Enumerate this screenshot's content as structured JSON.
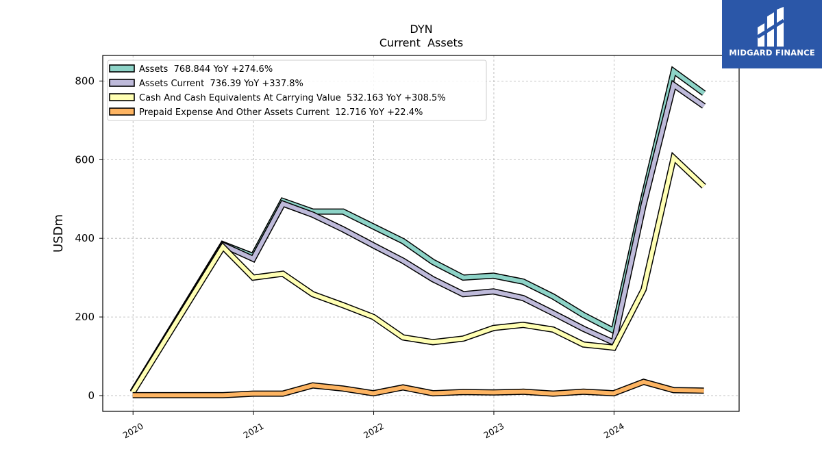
{
  "brand": {
    "name": "MIDGARD FINANCE",
    "bg": "#2b57a8"
  },
  "chart_data": {
    "type": "line",
    "title": "DYN",
    "subtitle": "Current  Assets",
    "ylabel": "USDm",
    "xlabel": "",
    "ylim": [
      -40,
      865
    ],
    "yticks": [
      0,
      200,
      400,
      600,
      800
    ],
    "xlim": [
      "2019-10-01",
      "2025-01-15"
    ],
    "xticks": [
      {
        "label": "2020",
        "date": "2020-01-01"
      },
      {
        "label": "2021",
        "date": "2021-01-01"
      },
      {
        "label": "2022",
        "date": "2022-01-01"
      },
      {
        "label": "2023",
        "date": "2023-01-01"
      },
      {
        "label": "2024",
        "date": "2024-01-01"
      }
    ],
    "grid": true,
    "legend_position": "top-left",
    "series": [
      {
        "name": "Assets  768.844 YoY +274.6%",
        "color": "#8dd3c7",
        "points": [
          [
            "2019-12-31",
            10
          ],
          [
            "2020-09-30",
            385
          ],
          [
            "2020-12-31",
            355
          ],
          [
            "2021-03-31",
            495
          ],
          [
            "2021-06-30",
            468
          ],
          [
            "2021-09-30",
            468
          ],
          [
            "2021-12-31",
            430
          ],
          [
            "2022-03-31",
            393
          ],
          [
            "2022-06-30",
            340
          ],
          [
            "2022-09-30",
            300
          ],
          [
            "2022-12-31",
            305
          ],
          [
            "2023-03-31",
            290
          ],
          [
            "2023-06-30",
            252
          ],
          [
            "2023-09-30",
            205
          ],
          [
            "2023-12-31",
            165
          ],
          [
            "2024-03-31",
            505
          ],
          [
            "2024-06-30",
            825
          ],
          [
            "2024-09-30",
            768.844
          ]
        ]
      },
      {
        "name": "Assets Current  736.39 YoY +337.8%",
        "color": "#bebada",
        "points": [
          [
            "2019-12-31",
            10
          ],
          [
            "2020-09-30",
            383
          ],
          [
            "2020-12-31",
            348
          ],
          [
            "2021-03-31",
            488
          ],
          [
            "2021-06-30",
            460
          ],
          [
            "2021-09-30",
            423
          ],
          [
            "2021-12-31",
            382
          ],
          [
            "2022-03-31",
            343
          ],
          [
            "2022-06-30",
            296
          ],
          [
            "2022-09-30",
            258
          ],
          [
            "2022-12-31",
            265
          ],
          [
            "2023-03-31",
            248
          ],
          [
            "2023-06-30",
            210
          ],
          [
            "2023-09-30",
            170
          ],
          [
            "2023-12-31",
            135
          ],
          [
            "2024-03-31",
            485
          ],
          [
            "2024-06-30",
            790
          ],
          [
            "2024-09-30",
            736.39
          ]
        ]
      },
      {
        "name": "Cash And Cash Equivalents At Carrying Value  532.163 YoY +308.5%",
        "color": "#ffffb3",
        "points": [
          [
            "2019-12-31",
            8
          ],
          [
            "2020-09-30",
            378
          ],
          [
            "2020-12-31",
            300
          ],
          [
            "2021-03-31",
            310
          ],
          [
            "2021-06-30",
            258
          ],
          [
            "2021-09-30",
            230
          ],
          [
            "2021-12-31",
            200
          ],
          [
            "2022-03-31",
            148
          ],
          [
            "2022-06-30",
            136
          ],
          [
            "2022-09-30",
            145
          ],
          [
            "2022-12-31",
            172
          ],
          [
            "2023-03-31",
            180
          ],
          [
            "2023-06-30",
            168
          ],
          [
            "2023-09-30",
            130
          ],
          [
            "2023-12-31",
            122
          ],
          [
            "2024-03-31",
            270
          ],
          [
            "2024-06-30",
            605
          ],
          [
            "2024-09-30",
            532.163
          ]
        ]
      },
      {
        "name": "Prepaid Expense And Other Assets Current  12.716 YoY +22.4%",
        "color": "#fdb462",
        "points": [
          [
            "2019-12-31",
            1
          ],
          [
            "2020-09-30",
            1
          ],
          [
            "2020-12-31",
            5
          ],
          [
            "2021-03-31",
            5
          ],
          [
            "2021-06-30",
            26
          ],
          [
            "2021-09-30",
            18
          ],
          [
            "2021-12-31",
            6
          ],
          [
            "2022-03-31",
            21
          ],
          [
            "2022-06-30",
            6
          ],
          [
            "2022-09-30",
            9
          ],
          [
            "2022-12-31",
            8
          ],
          [
            "2023-03-31",
            10
          ],
          [
            "2023-06-30",
            5
          ],
          [
            "2023-09-30",
            10
          ],
          [
            "2023-12-31",
            6
          ],
          [
            "2024-03-31",
            35
          ],
          [
            "2024-06-30",
            14
          ],
          [
            "2024-09-30",
            12.716
          ]
        ]
      }
    ]
  }
}
